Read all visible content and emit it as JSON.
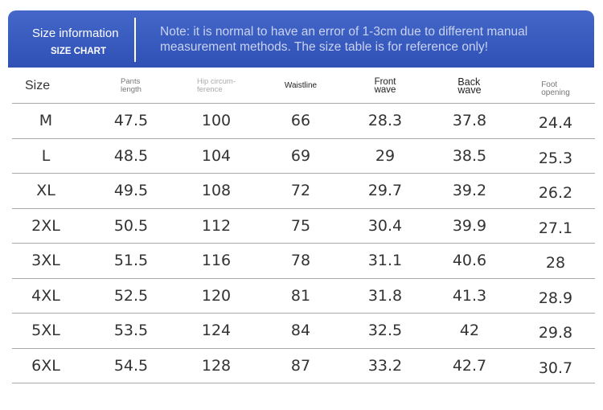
{
  "banner": {
    "title": "Size information",
    "subtitle": "SIZE CHART",
    "note": "Note: it is normal to have an error of 1-3cm due to different manual measurement methods. The size table is for reference only!"
  },
  "table": {
    "headers": [
      [
        "Size"
      ],
      [
        "Pants",
        "length"
      ],
      [
        "Hip circum-",
        "ference"
      ],
      [
        "Waistline"
      ],
      [
        "Front",
        "wave"
      ],
      [
        "Back",
        "wave"
      ],
      [
        "Foot",
        "opening"
      ]
    ],
    "rows": [
      [
        "M",
        "47.5",
        "100",
        "66",
        "28.3",
        "37.8",
        "24.4"
      ],
      [
        "L",
        "48.5",
        "104",
        "69",
        "29",
        "38.5",
        "25.3"
      ],
      [
        "XL",
        "49.5",
        "108",
        "72",
        "29.7",
        "39.2",
        "26.2"
      ],
      [
        "2XL",
        "50.5",
        "112",
        "75",
        "30.4",
        "39.9",
        "27.1"
      ],
      [
        "3XL",
        "51.5",
        "116",
        "78",
        "31.1",
        "40.6",
        "28"
      ],
      [
        "4XL",
        "52.5",
        "120",
        "81",
        "31.8",
        "41.3",
        "28.9"
      ],
      [
        "5XL",
        "53.5",
        "124",
        "84",
        "32.5",
        "42",
        "29.8"
      ],
      [
        "6XL",
        "54.5",
        "128",
        "87",
        "33.2",
        "42.7",
        "30.7"
      ]
    ]
  },
  "colors": {
    "banner_blue": "#3a5cc0",
    "divider_gray": "#a8a8a8"
  }
}
